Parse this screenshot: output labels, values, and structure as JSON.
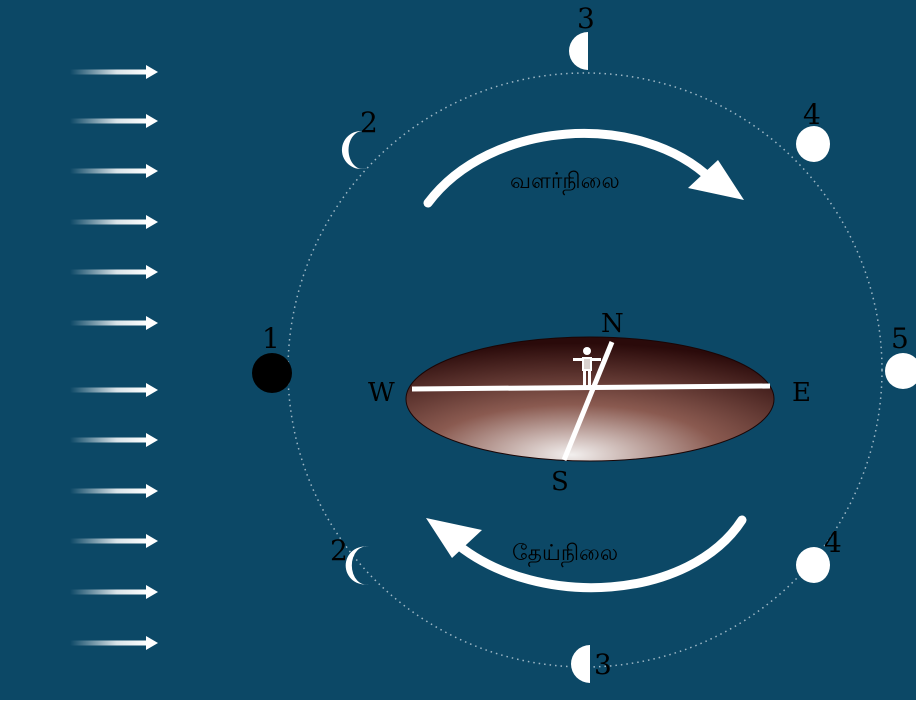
{
  "colors": {
    "background": "#0c4866",
    "moon_light": "#ffffff",
    "moon_dark": "#000000",
    "earth_dark": "#2a0a0a",
    "earth_light": "#f2efee",
    "orbit": "#9fb8c6"
  },
  "sunlight": {
    "arrow_count": 12,
    "icon": "arrow-right-icon"
  },
  "moons": [
    {
      "label": "1",
      "phase": "new"
    },
    {
      "label": "2",
      "phase": "waxing-crescent"
    },
    {
      "label": "3",
      "phase": "first-quarter"
    },
    {
      "label": "4",
      "phase": "waxing-gibbous"
    },
    {
      "label": "5",
      "phase": "full"
    },
    {
      "label": "4",
      "phase": "waning-gibbous"
    },
    {
      "label": "3",
      "phase": "last-quarter"
    },
    {
      "label": "2",
      "phase": "waning-crescent"
    }
  ],
  "directions": {
    "north": "N",
    "south": "S",
    "east": "E",
    "west": "W"
  },
  "labels": {
    "waxing": "வளர்நிலை",
    "waning": "தேய்நிலை"
  },
  "observer": {
    "icon": "person-icon"
  }
}
